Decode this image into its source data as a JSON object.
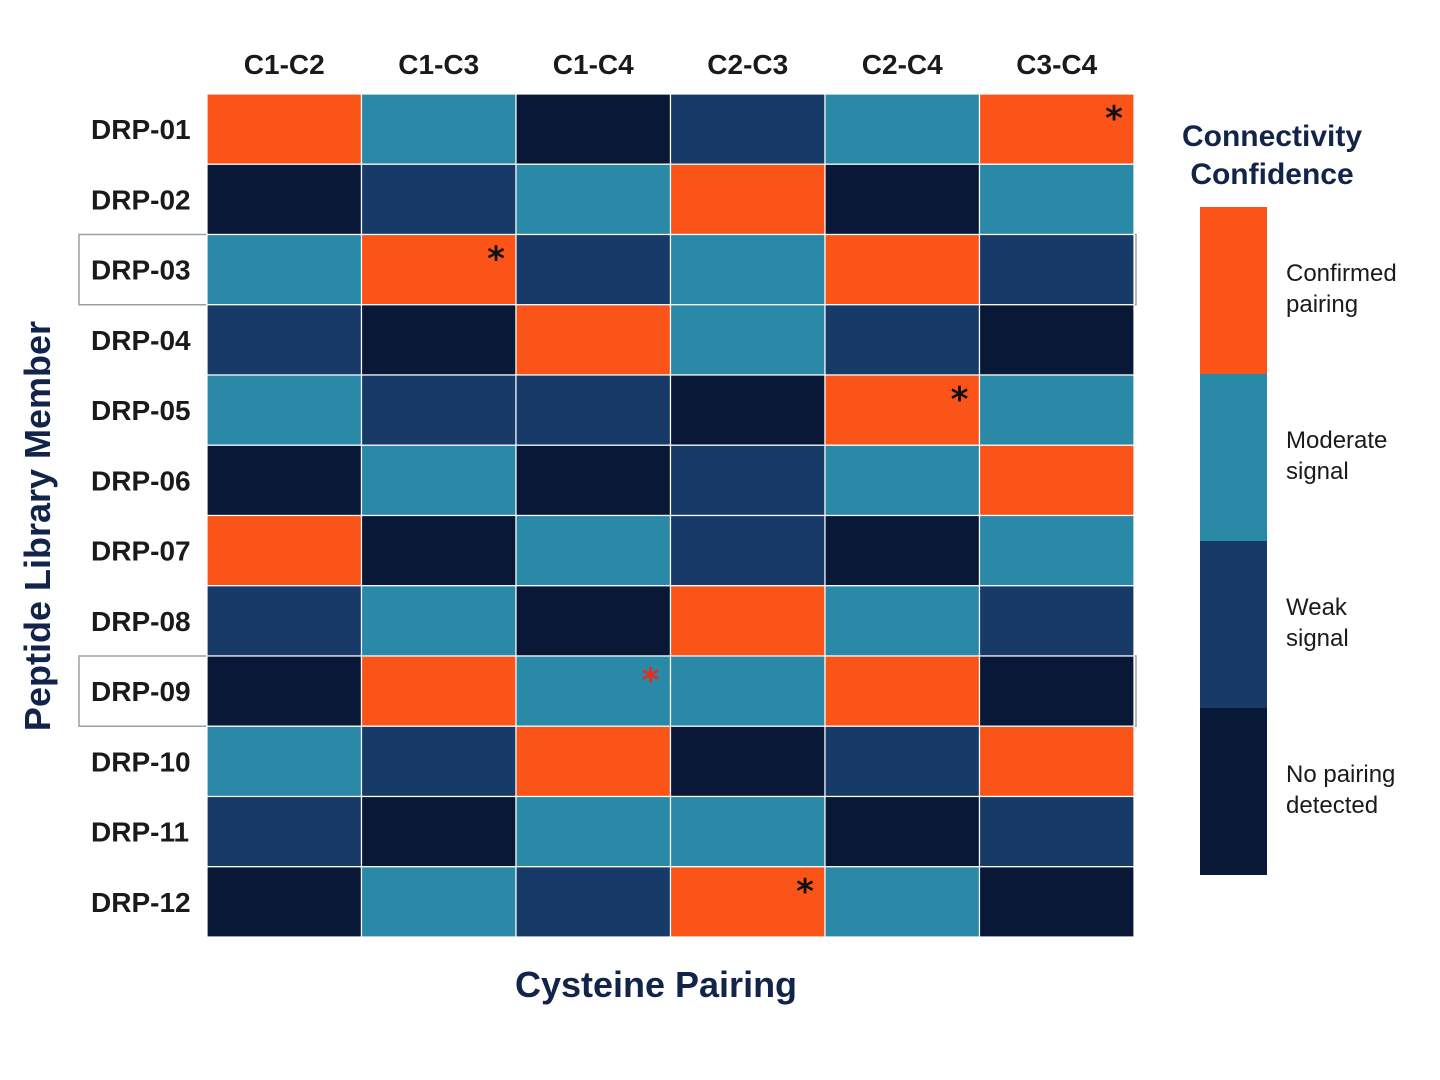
{
  "chart_data": {
    "type": "heatmap",
    "title": "",
    "xlabel": "Cysteine Pairing",
    "ylabel": "Peptide Library Member",
    "columns": [
      "C1-C2",
      "C1-C3",
      "C1-C4",
      "C2-C3",
      "C2-C4",
      "C3-C4"
    ],
    "rows": [
      "DRP-01",
      "DRP-02",
      "DRP-03",
      "DRP-04",
      "DRP-05",
      "DRP-06",
      "DRP-07",
      "DRP-08",
      "DRP-09",
      "DRP-10",
      "DRP-11",
      "DRP-12"
    ],
    "levels": [
      {
        "label": "Confirmed pairing",
        "lines": [
          "Confirmed",
          "pairing"
        ],
        "color": "#fb5418",
        "value": 3
      },
      {
        "label": "Moderate signal",
        "lines": [
          "Moderate",
          "signal"
        ],
        "color": "#2a89a7",
        "value": 2
      },
      {
        "label": "Weak signal",
        "lines": [
          "Weak",
          "signal"
        ],
        "color": "#173a68",
        "value": 1
      },
      {
        "label": "No pairing detected",
        "lines": [
          "No pairing",
          "detected"
        ],
        "color": "#0a1838",
        "value": 0
      }
    ],
    "values": [
      [
        3,
        2,
        0,
        1,
        2,
        3
      ],
      [
        0,
        1,
        2,
        3,
        0,
        2
      ],
      [
        2,
        3,
        1,
        2,
        3,
        1
      ],
      [
        1,
        0,
        3,
        2,
        1,
        0
      ],
      [
        2,
        1,
        1,
        0,
        3,
        2
      ],
      [
        0,
        2,
        0,
        1,
        2,
        3
      ],
      [
        3,
        0,
        2,
        1,
        0,
        2
      ],
      [
        1,
        2,
        0,
        3,
        2,
        1
      ],
      [
        0,
        3,
        2,
        2,
        3,
        0
      ],
      [
        2,
        1,
        3,
        0,
        1,
        3
      ],
      [
        1,
        0,
        2,
        2,
        0,
        1
      ],
      [
        0,
        2,
        1,
        3,
        2,
        0
      ]
    ],
    "annotations": [
      {
        "row": "DRP-01",
        "col": "C3-C4",
        "text": "*",
        "color": "#111111"
      },
      {
        "row": "DRP-03",
        "col": "C1-C3",
        "text": "*",
        "color": "#111111"
      },
      {
        "row": "DRP-05",
        "col": "C2-C4",
        "text": "*",
        "color": "#111111"
      },
      {
        "row": "DRP-09",
        "col": "C1-C4",
        "text": "*",
        "color": "#e0301e"
      },
      {
        "row": "DRP-12",
        "col": "C2-C3",
        "text": "*",
        "color": "#111111"
      }
    ],
    "highlighted_rows": [
      "DRP-03",
      "DRP-09"
    ],
    "legend": {
      "title_lines": [
        "Connectivity",
        "Confidence"
      ],
      "placement": "right"
    },
    "grid": true
  }
}
